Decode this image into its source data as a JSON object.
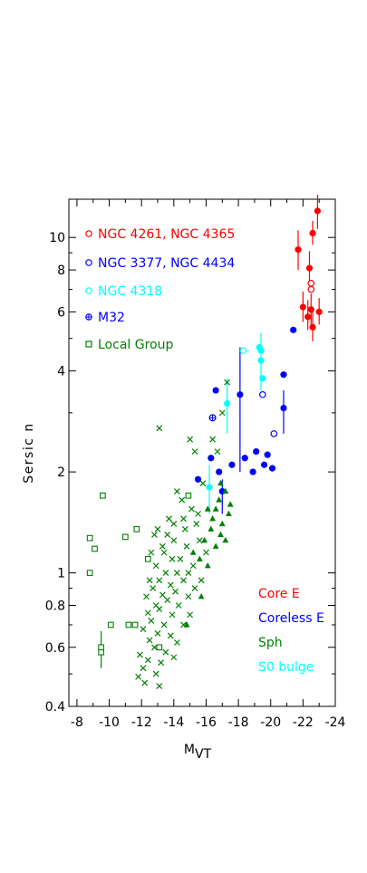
{
  "chart_data": {
    "type": "scatter",
    "title": "",
    "xlabel": "M",
    "xlabel_sub": "VT",
    "ylabel": "Sersic  n",
    "x_reversed": true,
    "y_scale": "log",
    "xlim": [
      -7.5,
      -24
    ],
    "ylim": [
      0.4,
      13
    ],
    "x_ticks": [
      -8,
      -10,
      -12,
      -14,
      -16,
      -18,
      -20,
      -22,
      -24
    ],
    "y_ticks": [
      0.4,
      0.6,
      0.8,
      1,
      2,
      4,
      6,
      8,
      10
    ],
    "grid": false,
    "colors": {
      "core": "#ff0000",
      "coreless": "#0000ff",
      "sph": "#008000",
      "bulge": "#00ffff"
    },
    "legend_symbols": [
      {
        "label": "NGC 4261, NGC 4365",
        "color": "#ff0000",
        "marker": "open-circle"
      },
      {
        "label": "NGC 3377, NGC 4434",
        "color": "#0000ff",
        "marker": "open-circle"
      },
      {
        "label": "NGC 4318",
        "color": "#00ffff",
        "marker": "open-circle"
      },
      {
        "label": "M32",
        "color": "#0000ff",
        "marker": "circle-plus"
      },
      {
        "label": "Local Group",
        "color": "#008000",
        "marker": "open-square"
      }
    ],
    "legend_key": [
      {
        "label": "Core E",
        "color": "#ff0000"
      },
      {
        "label": "Coreless E",
        "color": "#0000ff"
      },
      {
        "label": "Sph",
        "color": "#008000"
      },
      {
        "label": "S0 bulge",
        "color": "#00ffff"
      }
    ],
    "series": [
      {
        "name": "Core E",
        "marker": "filled-circle",
        "color": "#ff0000",
        "points": [
          [
            -22.9,
            12.0
          ],
          [
            -22.6,
            10.3
          ],
          [
            -21.7,
            9.2
          ],
          [
            -22.3,
            5.8
          ],
          [
            -22.0,
            6.2
          ],
          [
            -22.5,
            6.1
          ],
          [
            -22.6,
            5.4
          ],
          [
            -23.0,
            6.0
          ],
          [
            -22.4,
            8.1
          ]
        ],
        "errors": [
          [
            -22.9,
            10.6,
            13.4
          ],
          [
            -22.6,
            9.5,
            11.2
          ],
          [
            -21.7,
            8.0,
            10.5
          ],
          [
            -22.3,
            5.3,
            6.5
          ],
          [
            -22.0,
            5.6,
            6.9
          ],
          [
            -22.5,
            5.5,
            6.8
          ],
          [
            -22.6,
            4.9,
            6.0
          ],
          [
            -23.0,
            5.5,
            6.6
          ],
          [
            -22.4,
            7.2,
            9.1
          ]
        ]
      },
      {
        "name": "Core E (open)",
        "marker": "open-circle",
        "color": "#ff0000",
        "points": [
          [
            -22.5,
            7.3
          ],
          [
            -22.5,
            7.0
          ]
        ]
      },
      {
        "name": "Coreless E",
        "marker": "filled-circle",
        "color": "#0000ff",
        "points": [
          [
            -16.6,
            3.5
          ],
          [
            -16.3,
            2.2
          ],
          [
            -15.5,
            1.9
          ],
          [
            -17.0,
            1.75
          ],
          [
            -18.1,
            3.4
          ],
          [
            -18.4,
            2.2
          ],
          [
            -19.1,
            2.3
          ],
          [
            -19.6,
            2.1
          ],
          [
            -19.8,
            2.25
          ],
          [
            -20.1,
            2.05
          ],
          [
            -20.8,
            3.1
          ],
          [
            -20.8,
            3.9
          ],
          [
            -21.4,
            5.3
          ],
          [
            -18.9,
            2.0
          ],
          [
            -17.6,
            2.1
          ],
          [
            -16.8,
            2.0
          ]
        ],
        "errors": [
          [
            -18.1,
            2.0,
            4.7
          ],
          [
            -20.8,
            2.6,
            3.5
          ],
          [
            -17.0,
            1.5,
            1.9
          ]
        ]
      },
      {
        "name": "Coreless E (open)",
        "marker": "open-circle",
        "color": "#0000ff",
        "points": [
          [
            -19.5,
            3.4
          ],
          [
            -20.2,
            2.6
          ]
        ]
      },
      {
        "name": "M32",
        "marker": "circle-plus",
        "color": "#0000ff",
        "points": [
          [
            -16.4,
            2.9
          ]
        ]
      },
      {
        "name": "S0 bulge",
        "marker": "filled-circle",
        "color": "#00ffff",
        "points": [
          [
            -19.4,
            4.6
          ],
          [
            -19.4,
            4.3
          ],
          [
            -19.5,
            3.8
          ],
          [
            -17.3,
            3.2
          ],
          [
            -16.2,
            1.8
          ],
          [
            -19.3,
            4.7
          ]
        ],
        "errors": [
          [
            -19.4,
            3.5,
            5.2
          ],
          [
            -17.3,
            2.6,
            3.8
          ],
          [
            -16.2,
            1.5,
            2.1
          ]
        ]
      },
      {
        "name": "S0 bulge (open)",
        "marker": "open-circle",
        "color": "#00ffff",
        "points": [
          [
            -18.3,
            4.6
          ]
        ]
      },
      {
        "name": "Sph",
        "marker": "cross",
        "color": "#008000",
        "points": [
          [
            -17.3,
            3.7
          ],
          [
            -17.0,
            3.0
          ],
          [
            -16.7,
            2.3
          ],
          [
            -16.4,
            2.5
          ],
          [
            -15.0,
            2.5
          ],
          [
            -13.1,
            2.7
          ],
          [
            -15.3,
            2.3
          ],
          [
            -15.8,
            1.85
          ],
          [
            -14.2,
            1.75
          ],
          [
            -14.5,
            1.65
          ],
          [
            -15.1,
            1.55
          ],
          [
            -14.6,
            1.45
          ],
          [
            -15.4,
            1.4
          ],
          [
            -13.0,
            1.35
          ],
          [
            -12.8,
            1.3
          ],
          [
            -13.6,
            1.3
          ],
          [
            -14.0,
            1.25
          ],
          [
            -12.6,
            1.15
          ],
          [
            -13.3,
            1.2
          ],
          [
            -14.8,
            1.2
          ],
          [
            -15.6,
            1.25
          ],
          [
            -16.0,
            1.15
          ],
          [
            -13.9,
            1.1
          ],
          [
            -14.4,
            1.1
          ],
          [
            -12.9,
            1.05
          ],
          [
            -15.2,
            1.05
          ],
          [
            -13.5,
            1.0
          ],
          [
            -14.2,
            1.0
          ],
          [
            -12.5,
            0.95
          ],
          [
            -13.1,
            0.95
          ],
          [
            -14.6,
            0.95
          ],
          [
            -15.7,
            0.95
          ],
          [
            -13.8,
            0.92
          ],
          [
            -12.7,
            0.9
          ],
          [
            -14.1,
            0.88
          ],
          [
            -13.3,
            0.86
          ],
          [
            -12.3,
            0.85
          ],
          [
            -14.9,
            0.85
          ],
          [
            -13.6,
            0.83
          ],
          [
            -12.9,
            0.8
          ],
          [
            -14.3,
            0.8
          ],
          [
            -13.1,
            0.78
          ],
          [
            -12.4,
            0.76
          ],
          [
            -13.9,
            0.75
          ],
          [
            -15.0,
            0.75
          ],
          [
            -12.6,
            0.72
          ],
          [
            -13.4,
            0.7
          ],
          [
            -14.6,
            0.7
          ],
          [
            -12.1,
            0.68
          ],
          [
            -13.0,
            0.66
          ],
          [
            -13.8,
            0.65
          ],
          [
            -12.5,
            0.63
          ],
          [
            -14.2,
            0.62
          ],
          [
            -12.8,
            0.6
          ],
          [
            -13.5,
            0.58
          ],
          [
            -11.9,
            0.57
          ],
          [
            -12.4,
            0.55
          ],
          [
            -13.2,
            0.54
          ],
          [
            -14.0,
            0.56
          ],
          [
            -12.1,
            0.52
          ],
          [
            -12.9,
            0.5
          ],
          [
            -11.8,
            0.49
          ],
          [
            -13.1,
            0.46
          ],
          [
            -12.2,
            0.47
          ],
          [
            -14.7,
            1.35
          ],
          [
            -15.5,
            1.5
          ],
          [
            -13.7,
            1.45
          ],
          [
            -14.9,
            1.0
          ],
          [
            -15.3,
            0.9
          ],
          [
            -13.4,
            1.15
          ],
          [
            -14.0,
            1.4
          ]
        ]
      },
      {
        "name": "Sph (filled triangle)",
        "marker": "triangle",
        "color": "#008000",
        "points": [
          [
            -16.9,
            1.85
          ],
          [
            -17.2,
            1.75
          ],
          [
            -16.8,
            1.65
          ],
          [
            -16.6,
            1.55
          ],
          [
            -17.4,
            1.5
          ],
          [
            -16.4,
            1.45
          ],
          [
            -17.0,
            1.4
          ],
          [
            -16.1,
            1.55
          ],
          [
            -16.3,
            1.35
          ],
          [
            -17.5,
            1.6
          ],
          [
            -15.9,
            1.25
          ],
          [
            -16.6,
            1.2
          ],
          [
            -15.6,
            1.1
          ],
          [
            -16.1,
            1.05
          ],
          [
            -15.7,
            0.85
          ],
          [
            -17.2,
            1.25
          ],
          [
            -16.9,
            1.3
          ],
          [
            -14.8,
            0.7
          ],
          [
            -15.2,
            1.15
          ]
        ]
      },
      {
        "name": "Local Group",
        "marker": "open-square",
        "color": "#008000",
        "points": [
          [
            -9.6,
            1.7
          ],
          [
            -8.8,
            1.27
          ],
          [
            -9.1,
            1.18
          ],
          [
            -11.0,
            1.28
          ],
          [
            -11.7,
            1.35
          ],
          [
            -12.4,
            1.1
          ],
          [
            -8.8,
            1.0
          ],
          [
            -10.1,
            0.7
          ],
          [
            -11.2,
            0.7
          ],
          [
            -11.6,
            0.7
          ],
          [
            -9.5,
            0.58
          ],
          [
            -9.5,
            0.6
          ],
          [
            -14.9,
            1.7
          ],
          [
            -13.1,
            0.6
          ]
        ],
        "errors": [
          [
            -9.5,
            0.52,
            0.67
          ]
        ]
      }
    ]
  }
}
